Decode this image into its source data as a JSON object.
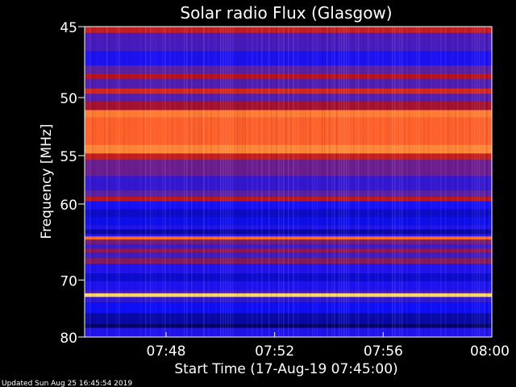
{
  "chart_data": {
    "type": "heatmap",
    "title": "Solar radio Flux (Glasgow)",
    "xlabel": "Start Time (17-Aug-19 07:45:00)",
    "ylabel": "Frequency [MHz]",
    "x_ticks": [
      "07:48",
      "07:52",
      "07:56",
      "08:00"
    ],
    "x_tick_minutes": [
      3,
      7,
      11,
      15
    ],
    "xlim_minutes": [
      0,
      15
    ],
    "y_ticks": [
      45,
      50,
      55,
      60,
      70,
      80
    ],
    "ylim": [
      45,
      80
    ],
    "y_scale": "reciprocal",
    "colormap": [
      "#000030",
      "#1010ff",
      "#6020a0",
      "#b01020",
      "#ff4020",
      "#ffa040",
      "#ffff80"
    ],
    "bands": [
      {
        "f1": 45.0,
        "f2": 45.4,
        "level": 3.4
      },
      {
        "f1": 45.4,
        "f2": 46.6,
        "level": 1.6
      },
      {
        "f1": 46.6,
        "f2": 47.6,
        "level": 1.2
      },
      {
        "f1": 47.6,
        "f2": 48.2,
        "level": 2.0
      },
      {
        "f1": 48.2,
        "f2": 48.6,
        "level": 3.0
      },
      {
        "f1": 48.6,
        "f2": 49.3,
        "level": 1.8
      },
      {
        "f1": 49.3,
        "f2": 49.7,
        "level": 3.5
      },
      {
        "f1": 49.7,
        "f2": 50.3,
        "level": 1.8
      },
      {
        "f1": 50.3,
        "f2": 51.0,
        "level": 2.8
      },
      {
        "f1": 51.0,
        "f2": 51.6,
        "level": 4.6
      },
      {
        "f1": 51.6,
        "f2": 54.0,
        "level": 4.3
      },
      {
        "f1": 54.0,
        "f2": 54.8,
        "level": 4.7
      },
      {
        "f1": 54.8,
        "f2": 55.4,
        "level": 3.2
      },
      {
        "f1": 55.4,
        "f2": 57.0,
        "level": 2.2
      },
      {
        "f1": 57.0,
        "f2": 58.5,
        "level": 1.5
      },
      {
        "f1": 58.5,
        "f2": 59.2,
        "level": 1.9
      },
      {
        "f1": 59.2,
        "f2": 59.7,
        "level": 3.1
      },
      {
        "f1": 59.7,
        "f2": 60.6,
        "level": 1.2
      },
      {
        "f1": 60.6,
        "f2": 61.5,
        "level": 0.7
      },
      {
        "f1": 61.5,
        "f2": 62.5,
        "level": 0.9
      },
      {
        "f1": 62.5,
        "f2": 63.0,
        "level": 1.1
      },
      {
        "f1": 63.0,
        "f2": 63.6,
        "level": 0.5
      },
      {
        "f1": 63.6,
        "f2": 63.9,
        "level": 1.4
      },
      {
        "f1": 63.9,
        "f2": 64.3,
        "level": 4.4
      },
      {
        "f1": 64.3,
        "f2": 64.9,
        "level": 2.2
      },
      {
        "f1": 64.9,
        "f2": 65.5,
        "level": 1.5
      },
      {
        "f1": 65.5,
        "f2": 66.0,
        "level": 2.6
      },
      {
        "f1": 66.0,
        "f2": 66.8,
        "level": 1.6
      },
      {
        "f1": 66.8,
        "f2": 67.6,
        "level": 2.4
      },
      {
        "f1": 67.6,
        "f2": 69.0,
        "level": 1.1
      },
      {
        "f1": 69.0,
        "f2": 70.2,
        "level": 0.8
      },
      {
        "f1": 70.2,
        "f2": 71.6,
        "level": 1.2
      },
      {
        "f1": 71.6,
        "f2": 72.1,
        "level": 1.5
      },
      {
        "f1": 72.1,
        "f2": 72.7,
        "level": 5.6
      },
      {
        "f1": 72.7,
        "f2": 73.6,
        "level": 1.5
      },
      {
        "f1": 73.6,
        "f2": 75.5,
        "level": 1.0
      },
      {
        "f1": 75.5,
        "f2": 77.5,
        "level": 0.6
      },
      {
        "f1": 77.5,
        "f2": 78.2,
        "level": 0.3
      },
      {
        "f1": 78.2,
        "f2": 80.0,
        "level": 1.1
      }
    ]
  },
  "footer": {
    "updated": "Updated Sun Aug 25 16:45:54 2019"
  }
}
